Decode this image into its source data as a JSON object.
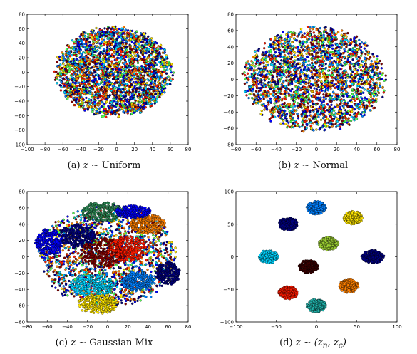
{
  "chart_data": [
    {
      "type": "scatter",
      "caption": {
        "label": "(a)",
        "math": "z ∼",
        "text": "Uniform"
      },
      "xlim": [
        -100,
        80
      ],
      "ylim": [
        -100,
        80
      ],
      "xticks": [
        -100,
        -80,
        -60,
        -40,
        -20,
        0,
        20,
        40,
        60,
        80
      ],
      "yticks": [
        -100,
        -80,
        -60,
        -40,
        -20,
        0,
        20,
        40,
        60,
        80
      ],
      "grid": false,
      "legend": "none",
      "colors": [
        "#00007f",
        "#0000ff",
        "#0080ff",
        "#00d4ff",
        "#4cff4c",
        "#ffe600",
        "#ff8000",
        "#ff1a00",
        "#800000"
      ],
      "clusters": [
        {
          "cx": -3,
          "cy": 0,
          "rx": 65,
          "ry": 62,
          "color": "mixed"
        }
      ]
    },
    {
      "type": "scatter",
      "caption": {
        "label": "(b)",
        "math": "z ∼",
        "text": "Normal"
      },
      "xlim": [
        -80,
        80
      ],
      "ylim": [
        -80,
        80
      ],
      "xticks": [
        -80,
        -60,
        -40,
        -20,
        0,
        20,
        40,
        60,
        80
      ],
      "yticks": [
        -80,
        -60,
        -40,
        -20,
        0,
        20,
        40,
        60,
        80
      ],
      "grid": false,
      "legend": "none",
      "colors": [
        "#00007f",
        "#0000ff",
        "#0080ff",
        "#00d4ff",
        "#4cff4c",
        "#ffe600",
        "#ff8000",
        "#ff1a00",
        "#800000"
      ],
      "clusters": [
        {
          "cx": -2,
          "cy": 0,
          "rx": 70,
          "ry": 64,
          "color": "mixed"
        }
      ]
    },
    {
      "type": "scatter",
      "caption": {
        "label": "(c)",
        "math": "z ∼",
        "text": "Gaussian Mix"
      },
      "xlim": [
        -80,
        80
      ],
      "ylim": [
        -80,
        80
      ],
      "xticks": [
        -80,
        -60,
        -40,
        -20,
        0,
        20,
        40,
        60,
        80
      ],
      "yticks": [
        -80,
        -60,
        -40,
        -20,
        0,
        20,
        40,
        60,
        80
      ],
      "grid": false,
      "legend": "none",
      "colors": [
        "#00007f",
        "#0000ff",
        "#0080ff",
        "#00d4ff",
        "#4cff4c",
        "#ffe600",
        "#ff8000",
        "#ff1a00",
        "#800000"
      ],
      "background": {
        "cx": 0,
        "cy": 0,
        "rx": 68,
        "ry": 62,
        "color": "mixed"
      },
      "clusters": [
        {
          "cx": -5,
          "cy": 55,
          "rx": 22,
          "ry": 12,
          "color": "#2e8b57"
        },
        {
          "cx": -58,
          "cy": 18,
          "rx": 14,
          "ry": 16,
          "color": "#0000ff"
        },
        {
          "cx": -30,
          "cy": 25,
          "rx": 18,
          "ry": 14,
          "color": "#00007f"
        },
        {
          "cx": 40,
          "cy": 40,
          "rx": 18,
          "ry": 12,
          "color": "#ff8000"
        },
        {
          "cx": 25,
          "cy": 55,
          "rx": 18,
          "ry": 8,
          "color": "#0000ff"
        },
        {
          "cx": -5,
          "cy": 5,
          "rx": 22,
          "ry": 18,
          "color": "#800000"
        },
        {
          "cx": 20,
          "cy": 10,
          "rx": 20,
          "ry": 16,
          "color": "#ff1a00"
        },
        {
          "cx": -15,
          "cy": -35,
          "rx": 22,
          "ry": 14,
          "color": "#00d4ff"
        },
        {
          "cx": 60,
          "cy": -20,
          "rx": 12,
          "ry": 14,
          "color": "#00007f"
        },
        {
          "cx": -10,
          "cy": -58,
          "rx": 20,
          "ry": 12,
          "color": "#ffe600"
        },
        {
          "cx": 30,
          "cy": -30,
          "rx": 16,
          "ry": 12,
          "color": "#0080ff"
        }
      ]
    },
    {
      "type": "scatter",
      "caption": {
        "label": "(d)",
        "math": "z ∼ (z",
        "sub_n": "n",
        "math2": ", z",
        "sub_c": "c",
        "math3": ")"
      },
      "xlim": [
        -100,
        100
      ],
      "ylim": [
        -100,
        100
      ],
      "xticks": [
        -100,
        -50,
        0,
        50,
        100
      ],
      "yticks": [
        -100,
        -50,
        0,
        50,
        100
      ],
      "grid": false,
      "legend": "none",
      "colors": [
        "#00007f",
        "#0000ff",
        "#0080ff",
        "#00d4ff",
        "#4cff4c",
        "#ffe600",
        "#ff8000",
        "#ff1a00",
        "#800000"
      ],
      "clusters": [
        {
          "cx": 0,
          "cy": 75,
          "rx": 12,
          "ry": 10,
          "color": "#0080ff"
        },
        {
          "cx": -35,
          "cy": 50,
          "rx": 12,
          "ry": 10,
          "color": "#00007f"
        },
        {
          "cx": 45,
          "cy": 60,
          "rx": 12,
          "ry": 10,
          "color": "#ffe600"
        },
        {
          "cx": -60,
          "cy": 0,
          "rx": 12,
          "ry": 10,
          "color": "#00d4ff"
        },
        {
          "cx": 15,
          "cy": 20,
          "rx": 12,
          "ry": 10,
          "color": "#9acd32"
        },
        {
          "cx": -10,
          "cy": -15,
          "rx": 12,
          "ry": 10,
          "color": "#3a0000"
        },
        {
          "cx": 70,
          "cy": 0,
          "rx": 14,
          "ry": 10,
          "color": "#00007f"
        },
        {
          "cx": -35,
          "cy": -55,
          "rx": 12,
          "ry": 10,
          "color": "#ff1a00"
        },
        {
          "cx": 40,
          "cy": -45,
          "rx": 12,
          "ry": 10,
          "color": "#ff8000"
        },
        {
          "cx": 0,
          "cy": -75,
          "rx": 12,
          "ry": 10,
          "color": "#20b2aa"
        }
      ]
    }
  ]
}
